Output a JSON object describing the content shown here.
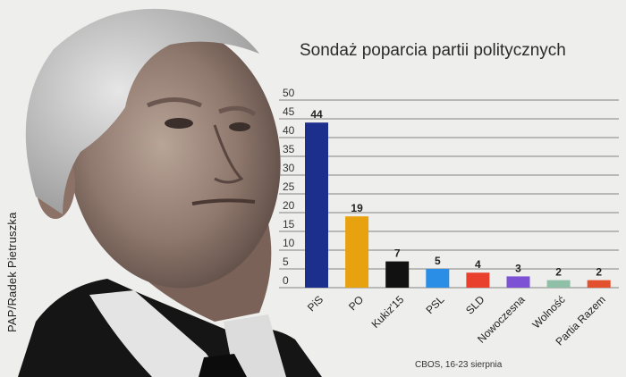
{
  "credit": "PAP/Radek Pietruszka",
  "chart_data": {
    "type": "bar",
    "title": "Sondaż poparcia partii politycznych",
    "source": "CBOS, 16-23 sierpnia",
    "categories": [
      "PiS",
      "PO",
      "Kukiz'15",
      "PSL",
      "SLD",
      "Nowoczesna",
      "Wolność",
      "Partia Razem"
    ],
    "values": [
      44,
      19,
      7,
      5,
      4,
      3,
      2,
      2
    ],
    "colors": [
      "#1d2f8c",
      "#e8a20f",
      "#111111",
      "#2a8ee6",
      "#e8402c",
      "#7d52d4",
      "#8fbfa6",
      "#e2502e"
    ],
    "ylim": [
      0,
      50
    ],
    "yticks": [
      0,
      5,
      10,
      15,
      20,
      25,
      30,
      35,
      40,
      45,
      50
    ],
    "grid": true,
    "xlabel": "",
    "ylabel": ""
  }
}
